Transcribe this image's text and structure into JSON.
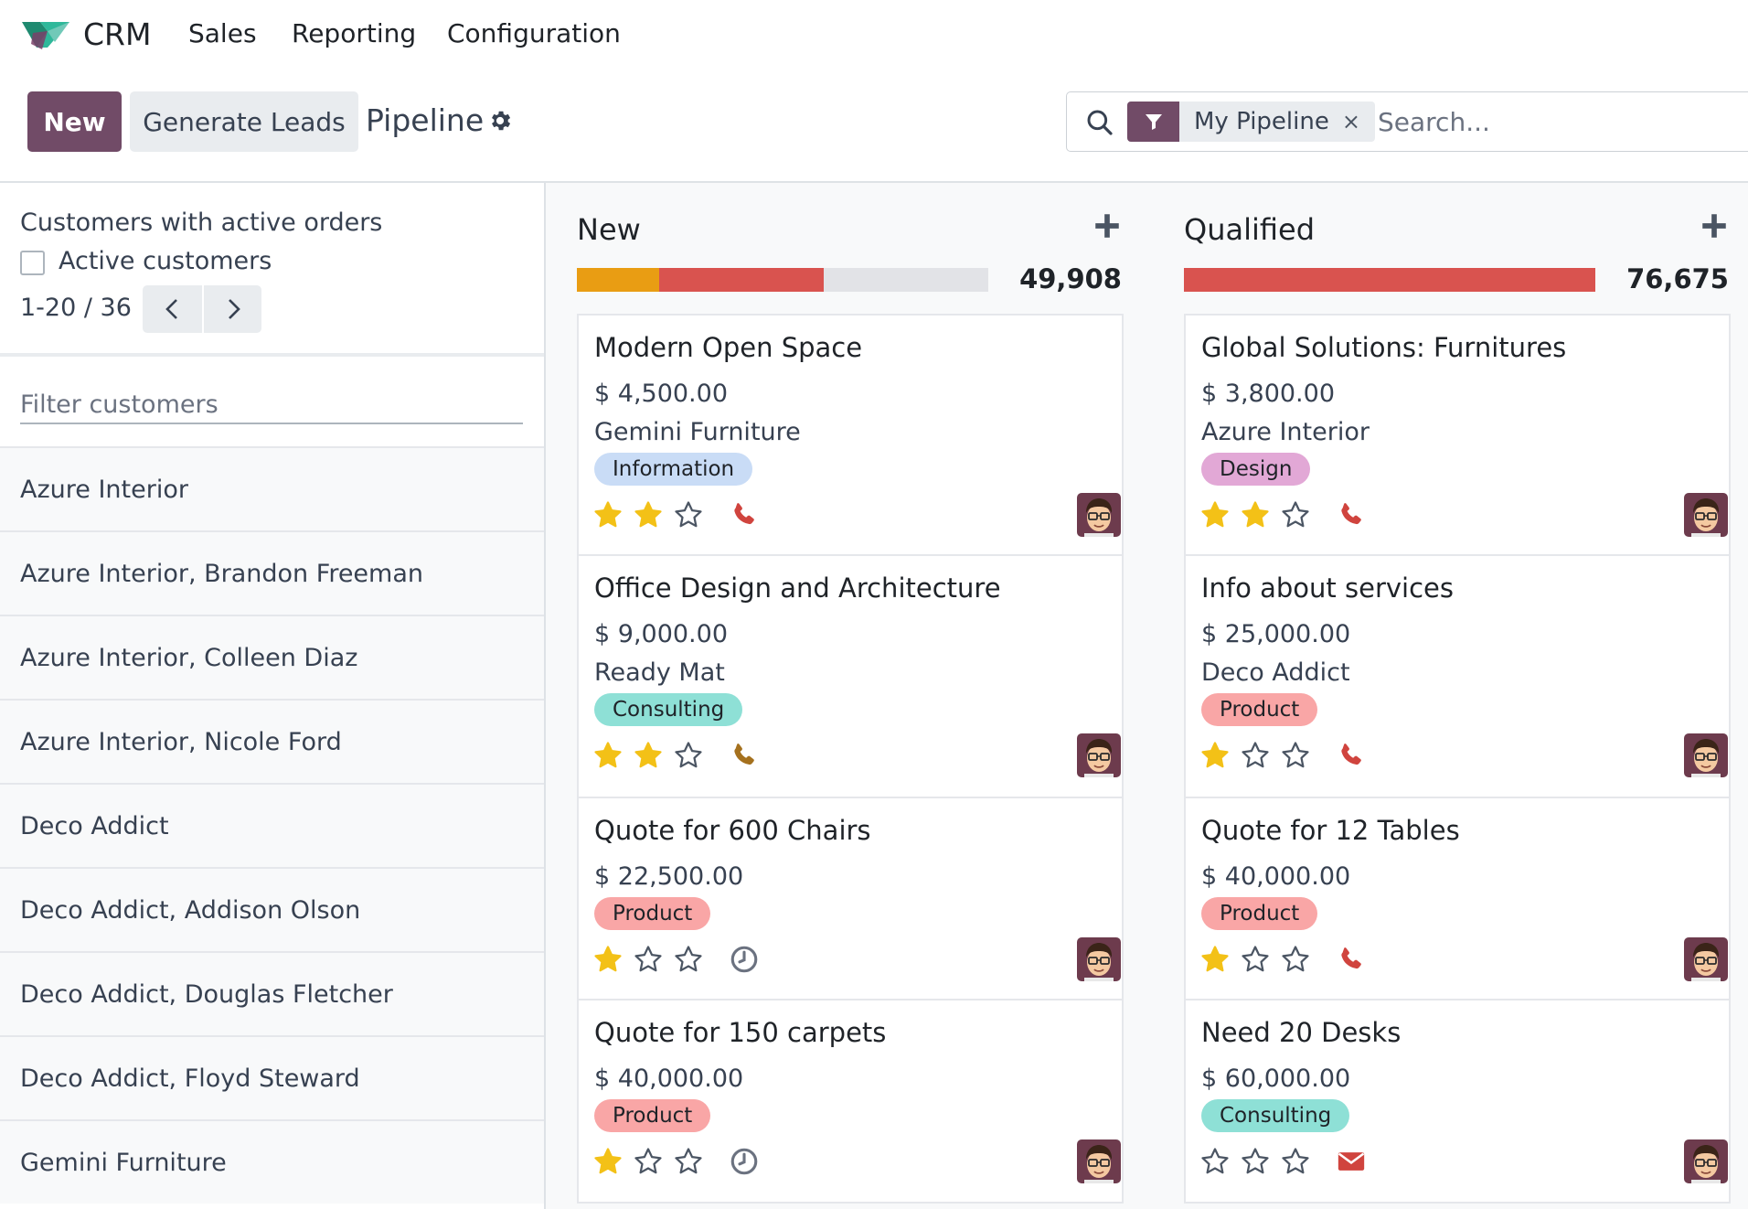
{
  "navbar": {
    "app_name": "CRM",
    "menus": [
      "Sales",
      "Reporting",
      "Configuration"
    ]
  },
  "control_panel": {
    "new_label": "New",
    "generate_leads_label": "Generate Leads",
    "page_title": "Pipeline",
    "search_facet": "My Pipeline",
    "search_facet_remove": "×",
    "search_placeholder": "Search..."
  },
  "side_panel": {
    "title": "Customers with active orders",
    "active_customers_label": "Active customers",
    "pager_value": "1-20 / 36",
    "filter_placeholder": "Filter customers",
    "customers": [
      "Azure Interior",
      "Azure Interior, Brandon Freeman",
      "Azure Interior, Colleen Diaz",
      "Azure Interior, Nicole Ford",
      "Deco Addict",
      "Deco Addict, Addison Olson",
      "Deco Addict, Douglas Fletcher",
      "Deco Addict, Floyd Steward",
      "Gemini Furniture"
    ]
  },
  "colors": {
    "brand": "#714b67",
    "progress_warning": "#e99d13",
    "progress_danger": "#d9534f",
    "progress_empty": "#e2e3e7",
    "star_filled": "#f3c117",
    "activity_danger": "#d0443e",
    "activity_warning": "#a5711e",
    "activity_planned": "#6b7280"
  },
  "columns": [
    {
      "title": "New",
      "total": "49,908",
      "progress": [
        {
          "status": "planned",
          "fraction": 0.2
        },
        {
          "status": "overdue",
          "fraction": 0.4
        },
        {
          "status": "none",
          "fraction": 0.4
        }
      ],
      "cards": [
        {
          "title": "Modern Open Space",
          "amount": "$ 4,500.00",
          "customer": "Gemini Furniture",
          "tag": "Information",
          "tag_color": "#c9dcf6",
          "stars": 2,
          "activity": "phone",
          "activity_state": "overdue"
        },
        {
          "title": "Office Design and Architecture",
          "amount": "$ 9,000.00",
          "customer": "Ready Mat",
          "tag": "Consulting",
          "tag_color": "#8ee0d6",
          "stars": 2,
          "activity": "phone",
          "activity_state": "today"
        },
        {
          "title": "Quote for 600 Chairs",
          "amount": "$ 22,500.00",
          "customer": "",
          "tag": "Product",
          "tag_color": "#f9a6a6",
          "stars": 1,
          "activity": "clock",
          "activity_state": "none"
        },
        {
          "title": "Quote for 150 carpets",
          "amount": "$ 40,000.00",
          "customer": "",
          "tag": "Product",
          "tag_color": "#f9a6a6",
          "stars": 1,
          "activity": "clock",
          "activity_state": "none"
        }
      ]
    },
    {
      "title": "Qualified",
      "total": "76,675",
      "progress": [
        {
          "status": "overdue",
          "fraction": 1.0
        }
      ],
      "cards": [
        {
          "title": "Global Solutions: Furnitures",
          "amount": "$ 3,800.00",
          "customer": "Azure Interior",
          "tag": "Design",
          "tag_color": "#e2a8d6",
          "stars": 2,
          "activity": "phone",
          "activity_state": "overdue"
        },
        {
          "title": "Info about services",
          "amount": "$ 25,000.00",
          "customer": "Deco Addict",
          "tag": "Product",
          "tag_color": "#f9a6a6",
          "stars": 1,
          "activity": "phone",
          "activity_state": "overdue"
        },
        {
          "title": "Quote for 12 Tables",
          "amount": "$ 40,000.00",
          "customer": "",
          "tag": "Product",
          "tag_color": "#f9a6a6",
          "stars": 1,
          "activity": "phone",
          "activity_state": "overdue"
        },
        {
          "title": "Need 20 Desks",
          "amount": "$ 60,000.00",
          "customer": "",
          "tag": "Consulting",
          "tag_color": "#8ee0d6",
          "stars": 0,
          "activity": "envelope",
          "activity_state": "overdue"
        }
      ]
    }
  ]
}
